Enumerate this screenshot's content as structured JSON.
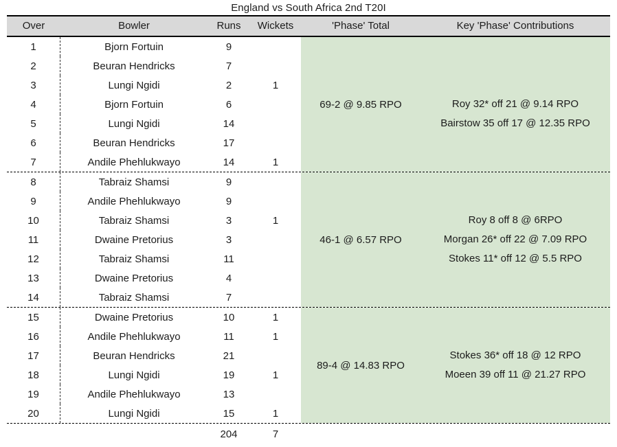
{
  "chart_data": {
    "type": "table",
    "title": "England vs South Africa 2nd T20I",
    "columns": [
      "Over",
      "Bowler",
      "Runs",
      "Wickets",
      "'Phase' Total",
      "Key 'Phase' Contributions"
    ],
    "phases": [
      {
        "phase_total": "69-2 @ 9.85 RPO",
        "contributions": [
          "Roy 32* off 21 @ 9.14 RPO",
          "Bairstow 35 off 17 @ 12.35 RPO"
        ],
        "overs": [
          {
            "over": "1",
            "bowler": "Bjorn Fortuin",
            "runs": "9",
            "wickets": ""
          },
          {
            "over": "2",
            "bowler": "Beuran Hendricks",
            "runs": "7",
            "wickets": ""
          },
          {
            "over": "3",
            "bowler": "Lungi Ngidi",
            "runs": "2",
            "wickets": "1"
          },
          {
            "over": "4",
            "bowler": "Bjorn Fortuin",
            "runs": "6",
            "wickets": ""
          },
          {
            "over": "5",
            "bowler": "Lungi Ngidi",
            "runs": "14",
            "wickets": ""
          },
          {
            "over": "6",
            "bowler": "Beuran Hendricks",
            "runs": "17",
            "wickets": ""
          },
          {
            "over": "7",
            "bowler": "Andile Phehlukwayo",
            "runs": "14",
            "wickets": "1"
          }
        ]
      },
      {
        "phase_total": "46-1 @ 6.57 RPO",
        "contributions": [
          "Roy 8 off 8 @ 6RPO",
          "Morgan 26* off 22 @ 7.09 RPO",
          "Stokes 11* off 12 @ 5.5 RPO"
        ],
        "overs": [
          {
            "over": "8",
            "bowler": "Tabraiz Shamsi",
            "runs": "9",
            "wickets": ""
          },
          {
            "over": "9",
            "bowler": "Andile Phehlukwayo",
            "runs": "9",
            "wickets": ""
          },
          {
            "over": "10",
            "bowler": "Tabraiz Shamsi",
            "runs": "3",
            "wickets": "1"
          },
          {
            "over": "11",
            "bowler": "Dwaine Pretorius",
            "runs": "3",
            "wickets": ""
          },
          {
            "over": "12",
            "bowler": "Tabraiz Shamsi",
            "runs": "11",
            "wickets": ""
          },
          {
            "over": "13",
            "bowler": "Dwaine Pretorius",
            "runs": "4",
            "wickets": ""
          },
          {
            "over": "14",
            "bowler": "Tabraiz Shamsi",
            "runs": "7",
            "wickets": ""
          }
        ]
      },
      {
        "phase_total": "89-4 @ 14.83 RPO",
        "contributions": [
          "Stokes 36* off 18 @ 12 RPO",
          "Moeen 39 off 11 @ 21.27 RPO"
        ],
        "overs": [
          {
            "over": "15",
            "bowler": "Dwaine Pretorius",
            "runs": "10",
            "wickets": "1"
          },
          {
            "over": "16",
            "bowler": "Andile Phehlukwayo",
            "runs": "11",
            "wickets": "1"
          },
          {
            "over": "17",
            "bowler": "Beuran Hendricks",
            "runs": "21",
            "wickets": ""
          },
          {
            "over": "18",
            "bowler": "Lungi Ngidi",
            "runs": "19",
            "wickets": "1"
          },
          {
            "over": "19",
            "bowler": "Andile Phehlukwayo",
            "runs": "13",
            "wickets": ""
          },
          {
            "over": "20",
            "bowler": "Lungi Ngidi",
            "runs": "15",
            "wickets": "1"
          }
        ]
      }
    ],
    "totals": {
      "runs": "204",
      "wickets": "7"
    },
    "colors": {
      "header_bg": "#d9d9d9",
      "phase_bg": "#d7e6d1",
      "text": "#1c1c1c",
      "line": "#000000"
    }
  }
}
